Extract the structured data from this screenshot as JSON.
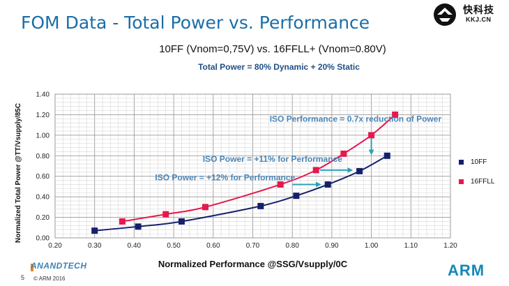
{
  "slide": {
    "title": "FOM Data - Total Power vs. Performance",
    "subtitle": "10FF (Vnom=0,75V) vs. 16FFLL+ (Vnom=0.80V)",
    "formula": "Total Power = 80% Dynamic + 20% Static",
    "page_number": "5",
    "copyright": "© ARM 2016",
    "watermark_cn": "快科技",
    "watermark_en": "KKJ.CN",
    "source_logo": "ANANDTECH",
    "brand_logo": "ARM"
  },
  "colors": {
    "title": "#1a6ea8",
    "series_10ff": "#15206b",
    "series_16ffll": "#e3194f",
    "annotation": "#4a86b8",
    "arrow": "#2aa3b3"
  },
  "chart_data": {
    "type": "line",
    "title": "",
    "xlabel": "Normalized Performance @SSG/Vsupply/0C",
    "ylabel": "Normalized Total Power @TT/Vsupply/85C",
    "xlim": [
      0.2,
      1.2
    ],
    "ylim": [
      0.0,
      1.4
    ],
    "x_ticks": [
      "0.20",
      "0.30",
      "0.40",
      "0.50",
      "0.60",
      "0.70",
      "0.80",
      "0.90",
      "1.00",
      "1.10",
      "1.20"
    ],
    "y_ticks": [
      "0.00",
      "0.20",
      "0.40",
      "0.60",
      "0.80",
      "1.00",
      "1.20",
      "1.40"
    ],
    "grid": true,
    "legend_position": "right",
    "series": [
      {
        "name": "10FF",
        "marker": "square",
        "points": [
          [
            0.3,
            0.07
          ],
          [
            0.41,
            0.11
          ],
          [
            0.52,
            0.16
          ],
          [
            0.72,
            0.31
          ],
          [
            0.81,
            0.41
          ],
          [
            0.89,
            0.52
          ],
          [
            0.97,
            0.65
          ],
          [
            1.04,
            0.8
          ]
        ]
      },
      {
        "name": "16FFLL",
        "marker": "square",
        "points": [
          [
            0.37,
            0.16
          ],
          [
            0.48,
            0.23
          ],
          [
            0.58,
            0.3
          ],
          [
            0.77,
            0.52
          ],
          [
            0.86,
            0.66
          ],
          [
            0.93,
            0.82
          ],
          [
            1.0,
            1.0
          ],
          [
            1.06,
            1.2
          ]
        ]
      }
    ],
    "annotations": [
      {
        "text": "ISO Performance = 0.7x reduction of Power",
        "x": 0.96,
        "y": 1.13
      },
      {
        "text": "ISO Power = +11% for Performance",
        "x": 0.75,
        "y": 0.74
      },
      {
        "text": "ISO Power = +12% for Performance",
        "x": 0.63,
        "y": 0.56
      }
    ],
    "arrows": [
      {
        "from": [
          1.0,
          0.97
        ],
        "to": [
          1.0,
          0.82
        ]
      },
      {
        "from": [
          0.87,
          0.66
        ],
        "to": [
          0.95,
          0.66
        ]
      },
      {
        "from": [
          0.8,
          0.52
        ],
        "to": [
          0.87,
          0.52
        ]
      }
    ]
  }
}
